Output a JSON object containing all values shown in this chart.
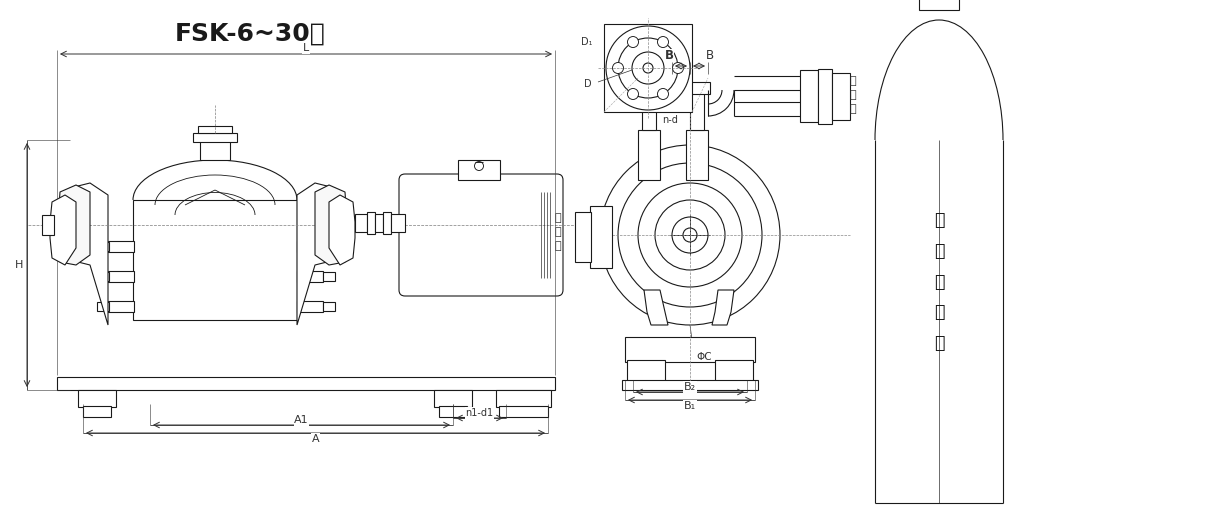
{
  "title": "FSK-6~30型",
  "title_fontsize": 18,
  "bg_color": "#ffffff",
  "line_color": "#1a1a1a",
  "dim_color": "#333333",
  "separator_label": "汽水分离器",
  "suction_label": "吸气口",
  "exhaust_label": "排气口"
}
